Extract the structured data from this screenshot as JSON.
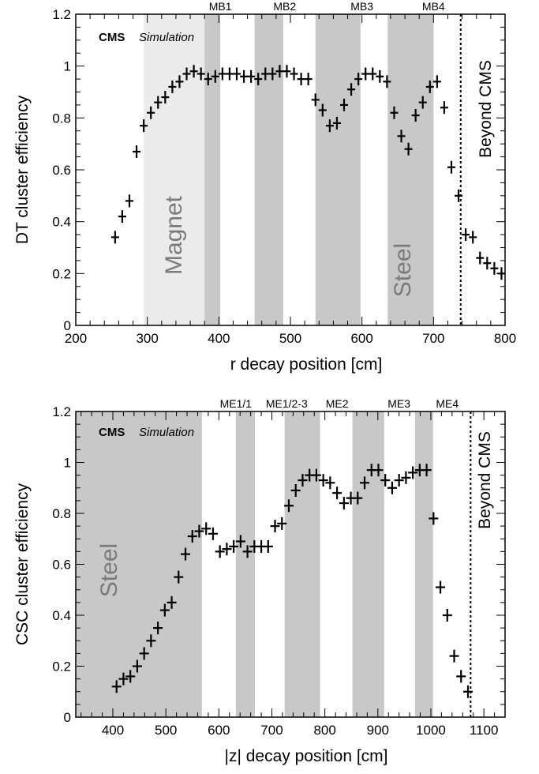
{
  "chart_data": [
    {
      "type": "scatter",
      "xlabel": "r decay position [cm]",
      "ylabel": "DT cluster efficiency",
      "xlim": [
        200,
        800
      ],
      "ylim": [
        0,
        1.2
      ],
      "x_ticks": [
        "200",
        "300",
        "400",
        "500",
        "600",
        "700",
        "800"
      ],
      "y_ticks": [
        "0",
        "0.2",
        "0.4",
        "0.6",
        "0.8",
        "1",
        "1.2"
      ],
      "experiment_label": "CMS",
      "status_label": "Simulation",
      "beyond_label": "Beyond CMS",
      "beyond_line_x": 738,
      "shaded_regions": [
        {
          "x0": 295,
          "x1": 380,
          "color": "#ebebeb",
          "label": "Magnet"
        },
        {
          "x0": 380,
          "x1": 402,
          "color": "#c8c8c8",
          "label": ""
        },
        {
          "x0": 450,
          "x1": 490,
          "color": "#c8c8c8",
          "label": ""
        },
        {
          "x0": 535,
          "x1": 598,
          "color": "#c8c8c8",
          "label": ""
        },
        {
          "x0": 636,
          "x1": 700,
          "color": "#c8c8c8",
          "label": "Steel"
        }
      ],
      "station_labels": [
        {
          "text": "MB1",
          "x": 402
        },
        {
          "text": "MB2",
          "x": 492
        },
        {
          "text": "MB3",
          "x": 600
        },
        {
          "text": "MB4",
          "x": 700
        }
      ],
      "points": [
        {
          "x": 255,
          "y": 0.34
        },
        {
          "x": 265,
          "y": 0.42
        },
        {
          "x": 275,
          "y": 0.48
        },
        {
          "x": 285,
          "y": 0.67
        },
        {
          "x": 295,
          "y": 0.77
        },
        {
          "x": 305,
          "y": 0.82
        },
        {
          "x": 315,
          "y": 0.86
        },
        {
          "x": 325,
          "y": 0.88
        },
        {
          "x": 335,
          "y": 0.92
        },
        {
          "x": 345,
          "y": 0.94
        },
        {
          "x": 355,
          "y": 0.97
        },
        {
          "x": 365,
          "y": 0.98
        },
        {
          "x": 375,
          "y": 0.97
        },
        {
          "x": 385,
          "y": 0.95
        },
        {
          "x": 395,
          "y": 0.96
        },
        {
          "x": 405,
          "y": 0.97
        },
        {
          "x": 415,
          "y": 0.97
        },
        {
          "x": 425,
          "y": 0.97
        },
        {
          "x": 435,
          "y": 0.96
        },
        {
          "x": 445,
          "y": 0.96
        },
        {
          "x": 455,
          "y": 0.95
        },
        {
          "x": 465,
          "y": 0.97
        },
        {
          "x": 475,
          "y": 0.97
        },
        {
          "x": 485,
          "y": 0.98
        },
        {
          "x": 495,
          "y": 0.98
        },
        {
          "x": 505,
          "y": 0.97
        },
        {
          "x": 515,
          "y": 0.95
        },
        {
          "x": 525,
          "y": 0.95
        },
        {
          "x": 535,
          "y": 0.87
        },
        {
          "x": 545,
          "y": 0.83
        },
        {
          "x": 555,
          "y": 0.77
        },
        {
          "x": 565,
          "y": 0.78
        },
        {
          "x": 575,
          "y": 0.85
        },
        {
          "x": 585,
          "y": 0.91
        },
        {
          "x": 595,
          "y": 0.95
        },
        {
          "x": 605,
          "y": 0.97
        },
        {
          "x": 615,
          "y": 0.97
        },
        {
          "x": 625,
          "y": 0.96
        },
        {
          "x": 635,
          "y": 0.94
        },
        {
          "x": 645,
          "y": 0.82
        },
        {
          "x": 655,
          "y": 0.73
        },
        {
          "x": 665,
          "y": 0.68
        },
        {
          "x": 675,
          "y": 0.81
        },
        {
          "x": 685,
          "y": 0.86
        },
        {
          "x": 695,
          "y": 0.92
        },
        {
          "x": 705,
          "y": 0.94
        },
        {
          "x": 715,
          "y": 0.84
        },
        {
          "x": 725,
          "y": 0.61
        },
        {
          "x": 735,
          "y": 0.5
        },
        {
          "x": 745,
          "y": 0.35
        },
        {
          "x": 755,
          "y": 0.34
        },
        {
          "x": 765,
          "y": 0.26
        },
        {
          "x": 775,
          "y": 0.24
        },
        {
          "x": 785,
          "y": 0.22
        },
        {
          "x": 795,
          "y": 0.2
        },
        {
          "x": 805,
          "y": 0.17
        }
      ]
    },
    {
      "type": "scatter",
      "xlabel": "|z| decay position [cm]",
      "ylabel": "CSC cluster efficiency",
      "xlim": [
        330,
        1140
      ],
      "ylim": [
        0,
        1.2
      ],
      "x_ticks": [
        "400",
        "500",
        "600",
        "700",
        "800",
        "900",
        "1000",
        "1100"
      ],
      "y_ticks": [
        "0",
        "0.2",
        "0.4",
        "0.6",
        "0.8",
        "1",
        "1.2"
      ],
      "experiment_label": "CMS",
      "status_label": "Simulation",
      "beyond_label": "Beyond CMS",
      "beyond_line_x": 1075,
      "shaded_regions": [
        {
          "x0": 330,
          "x1": 568,
          "color": "#c8c8c8",
          "label": "Steel"
        },
        {
          "x0": 632,
          "x1": 668,
          "color": "#c8c8c8",
          "label": ""
        },
        {
          "x0": 724,
          "x1": 791,
          "color": "#c8c8c8",
          "label": ""
        },
        {
          "x0": 852,
          "x1": 912,
          "color": "#c8c8c8",
          "label": ""
        },
        {
          "x0": 970,
          "x1": 1004,
          "color": "#c8c8c8",
          "label": ""
        }
      ],
      "station_labels": [
        {
          "text": "ME1/1",
          "x": 632
        },
        {
          "text": "ME1/2-3",
          "x": 728
        },
        {
          "text": "ME2",
          "x": 823
        },
        {
          "text": "ME3",
          "x": 940
        },
        {
          "text": "ME4",
          "x": 1031
        }
      ],
      "points": [
        {
          "x": 407,
          "y": 0.12
        },
        {
          "x": 420,
          "y": 0.15
        },
        {
          "x": 433,
          "y": 0.16
        },
        {
          "x": 446,
          "y": 0.2
        },
        {
          "x": 459,
          "y": 0.25
        },
        {
          "x": 472,
          "y": 0.3
        },
        {
          "x": 485,
          "y": 0.35
        },
        {
          "x": 498,
          "y": 0.42
        },
        {
          "x": 511,
          "y": 0.45
        },
        {
          "x": 524,
          "y": 0.55
        },
        {
          "x": 537,
          "y": 0.64
        },
        {
          "x": 550,
          "y": 0.71
        },
        {
          "x": 563,
          "y": 0.73
        },
        {
          "x": 576,
          "y": 0.74
        },
        {
          "x": 589,
          "y": 0.72
        },
        {
          "x": 602,
          "y": 0.65
        },
        {
          "x": 615,
          "y": 0.66
        },
        {
          "x": 628,
          "y": 0.67
        },
        {
          "x": 641,
          "y": 0.69
        },
        {
          "x": 654,
          "y": 0.65
        },
        {
          "x": 667,
          "y": 0.67
        },
        {
          "x": 680,
          "y": 0.67
        },
        {
          "x": 693,
          "y": 0.67
        },
        {
          "x": 706,
          "y": 0.75
        },
        {
          "x": 719,
          "y": 0.76
        },
        {
          "x": 732,
          "y": 0.83
        },
        {
          "x": 745,
          "y": 0.89
        },
        {
          "x": 758,
          "y": 0.93
        },
        {
          "x": 771,
          "y": 0.95
        },
        {
          "x": 784,
          "y": 0.95
        },
        {
          "x": 797,
          "y": 0.93
        },
        {
          "x": 810,
          "y": 0.92
        },
        {
          "x": 823,
          "y": 0.88
        },
        {
          "x": 836,
          "y": 0.84
        },
        {
          "x": 849,
          "y": 0.86
        },
        {
          "x": 862,
          "y": 0.86
        },
        {
          "x": 875,
          "y": 0.92
        },
        {
          "x": 888,
          "y": 0.97
        },
        {
          "x": 901,
          "y": 0.97
        },
        {
          "x": 914,
          "y": 0.93
        },
        {
          "x": 927,
          "y": 0.9
        },
        {
          "x": 940,
          "y": 0.93
        },
        {
          "x": 953,
          "y": 0.94
        },
        {
          "x": 966,
          "y": 0.96
        },
        {
          "x": 979,
          "y": 0.97
        },
        {
          "x": 992,
          "y": 0.97
        },
        {
          "x": 1005,
          "y": 0.78
        },
        {
          "x": 1018,
          "y": 0.51
        },
        {
          "x": 1031,
          "y": 0.4
        },
        {
          "x": 1044,
          "y": 0.24
        },
        {
          "x": 1057,
          "y": 0.16
        },
        {
          "x": 1070,
          "y": 0.1
        }
      ]
    }
  ]
}
